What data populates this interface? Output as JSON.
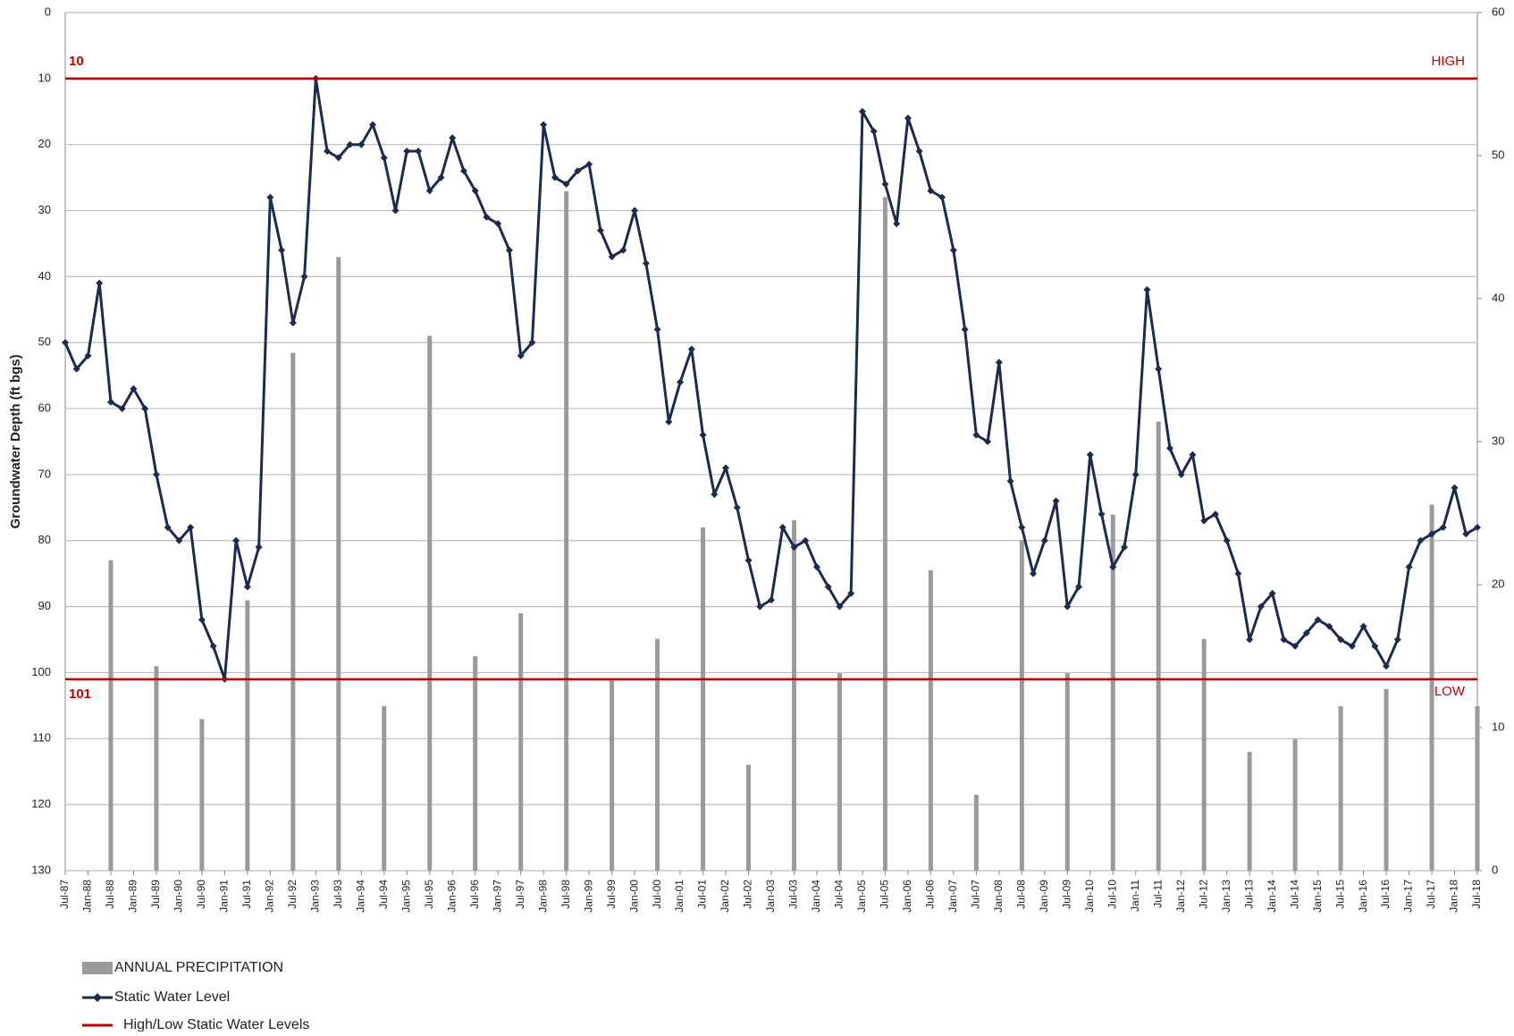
{
  "chart_data": {
    "type": "combo",
    "y_label": "Groundwater Depth (ft bgs)",
    "categories": [
      "Jul-87",
      null,
      "Jan-88",
      null,
      "Jul-88",
      null,
      "Jan-89",
      null,
      "Jul-89",
      null,
      "Jan-90",
      null,
      "Jul-90",
      null,
      "Jan-91",
      null,
      "Jul-91",
      null,
      "Jan-92",
      null,
      "Jul-92",
      null,
      "Jan-93",
      null,
      "Jul-93",
      null,
      "Jan-94",
      null,
      "Jul-94",
      null,
      "Jan-95",
      null,
      "Jul-95",
      null,
      "Jan-96",
      null,
      "Jul-96",
      null,
      "Jan-97",
      null,
      "Jul-97",
      null,
      "Jan-98",
      null,
      "Jul-98",
      null,
      "Jan-99",
      null,
      "Jul-99",
      null,
      "Jan-00",
      null,
      "Jul-00",
      null,
      "Jan-01",
      null,
      "Jul-01",
      null,
      "Jan-02",
      null,
      "Jul-02",
      null,
      "Jan-03",
      null,
      "Jul-03",
      null,
      "Jan-04",
      null,
      "Jul-04",
      null,
      "Jan-05",
      null,
      "Jul-05",
      null,
      "Jan-06",
      null,
      "Jul-06",
      null,
      "Jan-07",
      null,
      "Jul-07",
      null,
      "Jan-08",
      null,
      "Jul-08",
      null,
      "Jan-09",
      null,
      "Jul-09",
      null,
      "Jan-10",
      null,
      "Jul-10",
      null,
      "Jan-11",
      null,
      "Jul-11",
      null,
      "Jan-12",
      null,
      "Jul-12",
      null,
      "Jan-13",
      null,
      "Jul-13",
      null,
      "Jan-14",
      null,
      "Jul-14",
      null,
      "Jan-15",
      null,
      "Jul-15",
      null,
      "Jan-16",
      null,
      "Jul-16",
      null,
      "Jan-17",
      null,
      "Jul-17",
      null,
      "Jan-18",
      null,
      "Jul-18"
    ],
    "series": [
      {
        "name": "ANNUAL PRECIPITATION",
        "type": "bar",
        "axis": "y2",
        "color": "#9a9a9a",
        "values": [
          null,
          null,
          null,
          null,
          21.7,
          null,
          null,
          null,
          14.3,
          null,
          null,
          null,
          10.6,
          null,
          null,
          null,
          18.9,
          null,
          null,
          null,
          36.2,
          null,
          null,
          null,
          42.9,
          null,
          null,
          null,
          11.5,
          null,
          null,
          null,
          37.4,
          null,
          null,
          null,
          15.0,
          null,
          null,
          null,
          18.0,
          null,
          null,
          null,
          47.5,
          null,
          null,
          null,
          13.4,
          null,
          null,
          null,
          16.2,
          null,
          null,
          null,
          24.0,
          null,
          null,
          null,
          7.4,
          null,
          null,
          null,
          24.5,
          null,
          null,
          null,
          13.8,
          null,
          null,
          null,
          47.1,
          null,
          null,
          null,
          21.0,
          null,
          null,
          null,
          5.3,
          null,
          null,
          null,
          23.1,
          null,
          null,
          null,
          13.8,
          null,
          null,
          null,
          24.9,
          null,
          null,
          null,
          31.4,
          null,
          null,
          null,
          16.2,
          null,
          null,
          null,
          8.3,
          null,
          null,
          null,
          9.2,
          null,
          null,
          null,
          11.5,
          null,
          null,
          null,
          12.7,
          null,
          null,
          null,
          25.6,
          null,
          null,
          null,
          11.5
        ]
      },
      {
        "name": "Static Water Level",
        "type": "line",
        "axis": "y",
        "color": "#1b2a4f",
        "values": [
          50,
          54,
          52,
          41,
          59,
          60,
          57,
          60,
          70,
          78,
          80,
          78,
          92,
          96,
          101,
          80,
          87,
          81,
          28,
          36,
          47,
          40,
          10,
          21,
          22,
          20,
          20,
          17,
          22,
          30,
          21,
          21,
          27,
          25,
          19,
          24,
          27,
          31,
          32,
          36,
          52,
          50,
          17,
          25,
          26,
          24,
          23,
          33,
          37,
          36,
          30,
          38,
          48,
          62,
          56,
          51,
          64,
          73,
          69,
          75,
          83,
          90,
          89,
          78,
          81,
          80,
          84,
          87,
          90,
          88,
          15,
          18,
          26,
          32,
          16,
          21,
          27,
          28,
          36,
          48,
          64,
          65,
          53,
          71,
          78,
          85,
          80,
          74,
          90,
          87,
          67,
          76,
          84,
          81,
          70,
          42,
          54,
          66,
          70,
          67,
          77,
          76,
          80,
          85,
          95,
          90,
          88,
          95,
          96,
          94,
          92,
          93,
          95,
          96,
          93,
          96,
          99,
          95,
          84,
          80,
          79,
          78,
          72,
          79,
          78
        ]
      }
    ],
    "reference_name": "High/Low Static Water Levels",
    "reference_color": "#c00000",
    "reference_lines": [
      {
        "value": 10,
        "label": "HIGH"
      },
      {
        "value": 101,
        "label": "LOW"
      }
    ],
    "ylim": [
      0,
      130
    ],
    "y_inverted": true,
    "yticks": [
      0,
      10,
      20,
      30,
      40,
      50,
      60,
      70,
      80,
      90,
      100,
      110,
      120,
      130
    ],
    "y2lim": [
      0,
      60
    ],
    "y2ticks": [
      0,
      10,
      20,
      30,
      40,
      50,
      60
    ],
    "grid": true
  }
}
